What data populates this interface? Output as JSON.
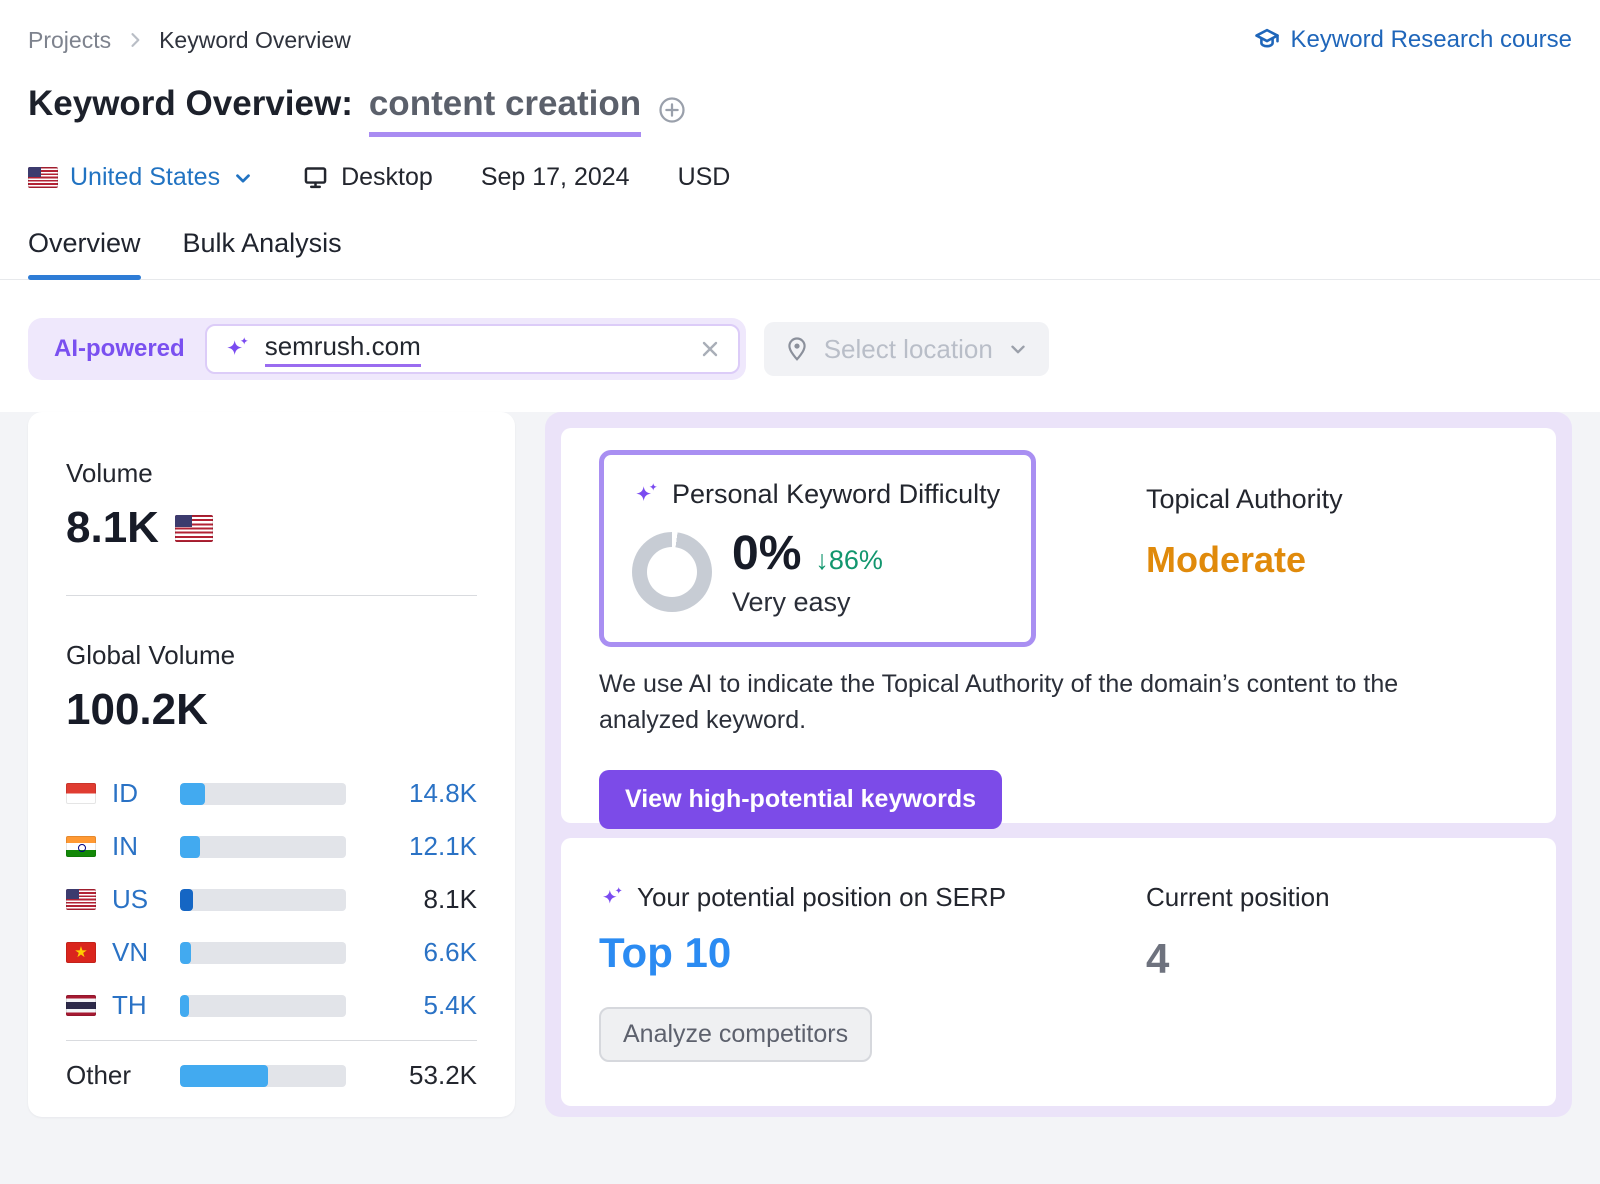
{
  "breadcrumb": {
    "projects": "Projects",
    "current": "Keyword Overview"
  },
  "course_link": "Keyword Research course",
  "title": {
    "label": "Keyword Overview:",
    "keyword": "content creation"
  },
  "filters": {
    "country": "United States",
    "device": "Desktop",
    "date": "Sep 17, 2024",
    "currency": "USD"
  },
  "tabs": [
    {
      "label": "Overview",
      "active": true
    },
    {
      "label": "Bulk Analysis",
      "active": false
    }
  ],
  "search": {
    "badge": "AI-powered",
    "value": "semrush.com",
    "location_placeholder": "Select location"
  },
  "volume_card": {
    "volume_label": "Volume",
    "volume": "8.1K",
    "volume_flag": "us",
    "global_label": "Global Volume",
    "global": "100.2K",
    "countries": [
      {
        "code": "ID",
        "flag": "id",
        "value": "14.8K",
        "pct": 14.8,
        "current": false
      },
      {
        "code": "IN",
        "flag": "in",
        "value": "12.1K",
        "pct": 12.1,
        "current": false
      },
      {
        "code": "US",
        "flag": "us",
        "value": "8.1K",
        "pct": 8.1,
        "current": true
      },
      {
        "code": "VN",
        "flag": "vn",
        "value": "6.6K",
        "pct": 6.6,
        "current": false
      },
      {
        "code": "TH",
        "flag": "th",
        "value": "5.4K",
        "pct": 5.4,
        "current": false
      }
    ],
    "other": {
      "label": "Other",
      "value": "53.2K",
      "pct": 53.1
    }
  },
  "pkd_card": {
    "title": "Personal Keyword Difficulty",
    "value": "0%",
    "delta": "↓86%",
    "level": "Very easy",
    "topical_authority_label": "Topical Authority",
    "topical_authority_value": "Moderate",
    "description": "We use AI to indicate the Topical Authority of the domain’s content to the analyzed keyword.",
    "cta": "View high-potential keywords"
  },
  "serp_card": {
    "title": "Your potential position on SERP",
    "potential": "Top 10",
    "current_label": "Current position",
    "current": "4",
    "cta": "Analyze competitors"
  },
  "colors": {
    "accent_purple": "#7c4be8",
    "lavender_panel": "#ebe3f9",
    "link_blue": "#2a72c5",
    "bright_blue": "#2b8bf2",
    "bar_blue": "#42aaf0",
    "bar_blue_dark": "#1566c4",
    "delta_green": "#12966e",
    "authority_orange": "#e08a0b",
    "tab_underline": "#2e7cd6"
  }
}
